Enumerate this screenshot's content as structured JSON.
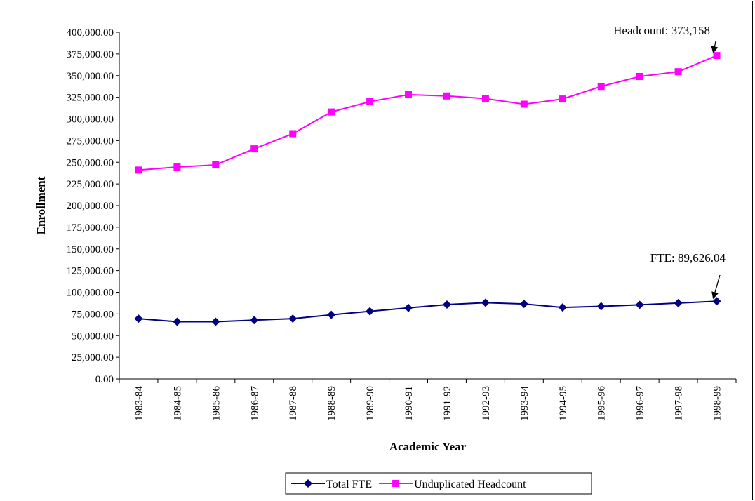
{
  "chart_data": {
    "type": "line",
    "title": "",
    "xlabel": "Academic Year",
    "ylabel": "Enrollment",
    "ylim": [
      0,
      400000
    ],
    "ytick_step": 25000,
    "grid": false,
    "legend_position": "bottom",
    "categories": [
      "1983-84",
      "1984-85",
      "1985-86",
      "1986-87",
      "1987-88",
      "1988-89",
      "1989-90",
      "1990-91",
      "1991-92",
      "1992-93",
      "1993-94",
      "1994-95",
      "1995-96",
      "1996-97",
      "1997-98",
      "1998-99"
    ],
    "series": [
      {
        "name": "Total FTE",
        "color": "#000080",
        "marker": "diamond",
        "values": [
          69500,
          66000,
          66000,
          67800,
          69500,
          74000,
          78000,
          82000,
          85800,
          88000,
          86500,
          82500,
          83800,
          85500,
          87600,
          89626.04
        ]
      },
      {
        "name": "Unduplicated Headcount",
        "color": "#FF00FF",
        "marker": "square",
        "values": [
          241000,
          244500,
          247000,
          265500,
          283000,
          308000,
          320000,
          328000,
          326500,
          323500,
          317000,
          323000,
          337500,
          349000,
          354500,
          373158
        ]
      }
    ],
    "annotations": [
      {
        "text": "Headcount: 373,158",
        "series": 1,
        "category_index": 15
      },
      {
        "text": "FTE: 89,626.04",
        "series": 0,
        "category_index": 15
      }
    ]
  }
}
